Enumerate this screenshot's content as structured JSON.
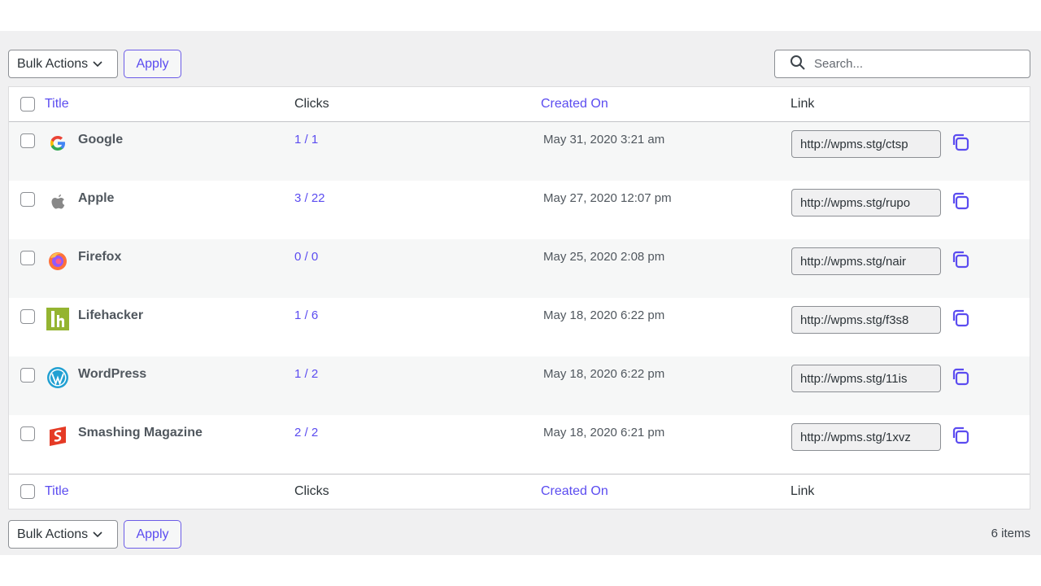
{
  "toolbar": {
    "bulk_label": "Bulk Actions",
    "apply_label": "Apply",
    "search_placeholder": "Search..."
  },
  "columns": {
    "title": "Title",
    "clicks": "Clicks",
    "created": "Created On",
    "link": "Link"
  },
  "rows": [
    {
      "title": "Google",
      "icon": "google-icon",
      "clicks": "1 / 1",
      "created": "May 31, 2020 3:21 am",
      "link": "http://wpms.stg/ctsp"
    },
    {
      "title": "Apple",
      "icon": "apple-icon",
      "clicks": "3 / 22",
      "created": "May 27, 2020 12:07 pm",
      "link": "http://wpms.stg/rupo"
    },
    {
      "title": "Firefox",
      "icon": "firefox-icon",
      "clicks": "0 / 0",
      "created": "May 25, 2020 2:08 pm",
      "link": "http://wpms.stg/nair"
    },
    {
      "title": "Lifehacker",
      "icon": "lifehacker-icon",
      "clicks": "1 / 6",
      "created": "May 18, 2020 6:22 pm",
      "link": "http://wpms.stg/f3s8"
    },
    {
      "title": "WordPress",
      "icon": "wordpress-icon",
      "clicks": "1 / 2",
      "created": "May 18, 2020 6:22 pm",
      "link": "http://wpms.stg/11is"
    },
    {
      "title": "Smashing Magazine",
      "icon": "smashing-magazine-icon",
      "clicks": "2 / 2",
      "created": "May 18, 2020 6:21 pm",
      "link": "http://wpms.stg/1xvz"
    }
  ],
  "footer": {
    "count": "6 items"
  },
  "colors": {
    "accent": "#5b4cf0"
  }
}
